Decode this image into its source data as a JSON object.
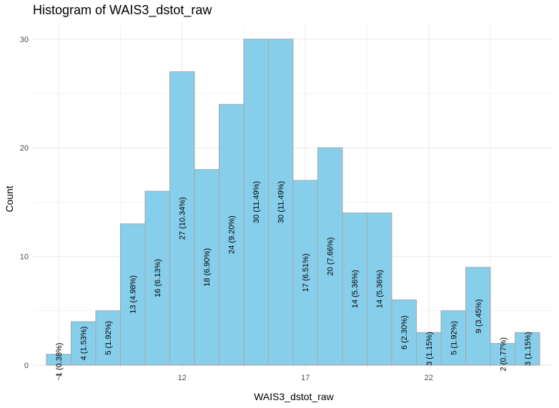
{
  "chart_data": {
    "type": "bar",
    "title": "Histogram of WAIS3_dstot_raw",
    "xlabel": "WAIS3_dstot_raw",
    "ylabel": "Count",
    "bin_width": 1,
    "bin_centers": [
      7,
      8,
      9,
      10,
      11,
      12,
      13,
      14,
      15,
      16,
      17,
      18,
      19,
      20,
      21,
      22,
      23,
      24,
      25,
      26
    ],
    "values": [
      1,
      4,
      5,
      13,
      16,
      27,
      18,
      24,
      30,
      30,
      17,
      20,
      14,
      14,
      6,
      3,
      5,
      9,
      2,
      3
    ],
    "labels": [
      "1 (0.38%)",
      "4 (1.53%)",
      "5 (1.92%)",
      "13 (4.98%)",
      "16 (6.13%)",
      "27 (10.34%)",
      "18 (6.90%)",
      "24 (9.20%)",
      "30 (11.49%)",
      "30 (11.49%)",
      "17 (6.51%)",
      "20 (7.66%)",
      "14 (5.36%)",
      "14 (5.36%)",
      "6 (2.30%)",
      "3 (1.15%)",
      "5 (1.92%)",
      "9 (3.45%)",
      "2 (0.77%)",
      "3 (1.15%)"
    ],
    "x_ticks": [
      7,
      12,
      17,
      22
    ],
    "y_ticks": [
      0,
      10,
      20,
      30
    ],
    "xlim": [
      5.95,
      27.05
    ],
    "ylim": [
      -0.4,
      31.5
    ],
    "grid": true,
    "legend": "none",
    "colors": {
      "fill": "#87ceeb",
      "stroke": "#a6a6a6",
      "grid": "#ebebeb"
    }
  }
}
